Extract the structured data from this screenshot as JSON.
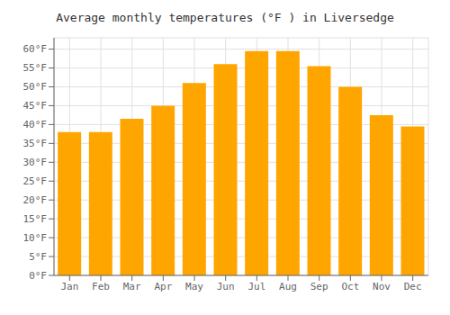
{
  "chart_data": {
    "type": "bar",
    "title": "Average monthly temperatures (°F ) in Liversedge",
    "categories": [
      "Jan",
      "Feb",
      "Mar",
      "Apr",
      "May",
      "Jun",
      "Jul",
      "Aug",
      "Sep",
      "Oct",
      "Nov",
      "Dec"
    ],
    "values": [
      38,
      38,
      41.5,
      45,
      51,
      56,
      59.5,
      59.5,
      55.5,
      50,
      42.5,
      39.5
    ],
    "color": "#FFA500",
    "ylim": [
      0,
      63
    ],
    "yticks": [
      {
        "value": 0,
        "label": "0°F"
      },
      {
        "value": 5,
        "label": "5°F"
      },
      {
        "value": 10,
        "label": "10°F"
      },
      {
        "value": 15,
        "label": "15°F"
      },
      {
        "value": 20,
        "label": "20°F"
      },
      {
        "value": 25,
        "label": "25°F"
      },
      {
        "value": 30,
        "label": "30°F"
      },
      {
        "value": 35,
        "label": "35°F"
      },
      {
        "value": 40,
        "label": "40°F"
      },
      {
        "value": 45,
        "label": "45°F"
      },
      {
        "value": 50,
        "label": "50°F"
      },
      {
        "value": 55,
        "label": "55°F"
      },
      {
        "value": 60,
        "label": "60°F"
      }
    ],
    "grid": true
  }
}
